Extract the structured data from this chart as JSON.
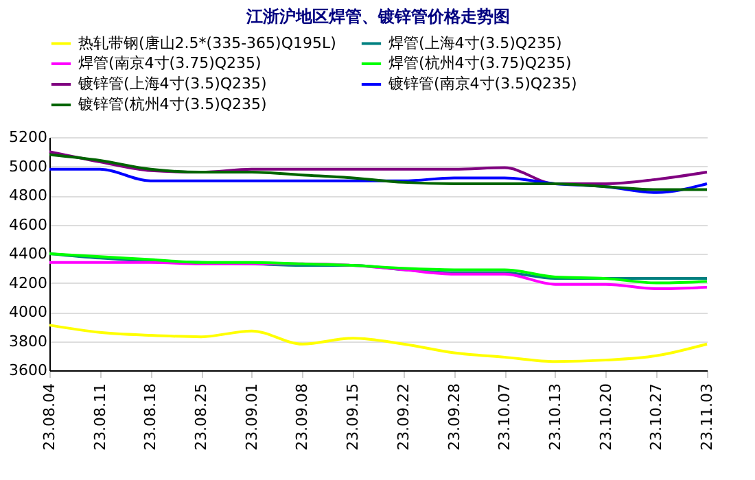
{
  "chart_data": {
    "type": "line",
    "title": "江浙沪地区焊管、镀锌管价格走势图",
    "categories": [
      "23.08.04",
      "23.08.11",
      "23.08.18",
      "23.08.25",
      "23.09.01",
      "23.09.08",
      "23.09.15",
      "23.09.22",
      "23.09.28",
      "23.10.07",
      "23.10.13",
      "23.10.20",
      "23.10.27",
      "23.11.03"
    ],
    "series": [
      {
        "name": "热轧带钢(唐山2.5*(335-365)Q195L)",
        "color": "#ffff00",
        "values": [
          3910,
          3860,
          3840,
          3830,
          3870,
          3780,
          3820,
          3780,
          3720,
          3690,
          3660,
          3670,
          3700,
          3780
        ]
      },
      {
        "name": "焊管(上海4寸(3.5)Q235)",
        "color": "#008080",
        "values": [
          4400,
          4370,
          4350,
          4340,
          4330,
          4320,
          4320,
          4290,
          4270,
          4270,
          4230,
          4230,
          4230,
          4230
        ]
      },
      {
        "name": "焊管(南京4寸(3.75)Q235)",
        "color": "#ff00ff",
        "values": [
          4340,
          4340,
          4340,
          4330,
          4330,
          4330,
          4320,
          4290,
          4260,
          4260,
          4190,
          4190,
          4160,
          4170
        ]
      },
      {
        "name": "焊管(杭州4寸(3.75)Q235)",
        "color": "#00ff00",
        "values": [
          4400,
          4380,
          4360,
          4340,
          4340,
          4330,
          4320,
          4300,
          4290,
          4290,
          4240,
          4230,
          4200,
          4210
        ]
      },
      {
        "name": "镀锌管(上海4寸(3.5)Q235)",
        "color": "#800080",
        "values": [
          5100,
          5030,
          4970,
          4960,
          4980,
          4980,
          4980,
          4980,
          4980,
          4990,
          4880,
          4880,
          4910,
          4960
        ]
      },
      {
        "name": "镀锌管(南京4寸(3.5)Q235)",
        "color": "#0000ff",
        "values": [
          4980,
          4980,
          4900,
          4900,
          4900,
          4900,
          4900,
          4900,
          4920,
          4920,
          4880,
          4860,
          4820,
          4880
        ]
      },
      {
        "name": "镀锌管(杭州4寸(3.5)Q235)",
        "color": "#006400",
        "values": [
          5080,
          5040,
          4980,
          4960,
          4960,
          4940,
          4920,
          4890,
          4880,
          4880,
          4880,
          4860,
          4840,
          4840
        ]
      }
    ],
    "ylim": [
      3600,
      5200
    ],
    "yticks": [
      3600,
      3800,
      4000,
      4200,
      4400,
      4600,
      4800,
      5000,
      5200
    ],
    "grid": "y",
    "legend": "top",
    "marker": "none",
    "line_style": "solid"
  }
}
